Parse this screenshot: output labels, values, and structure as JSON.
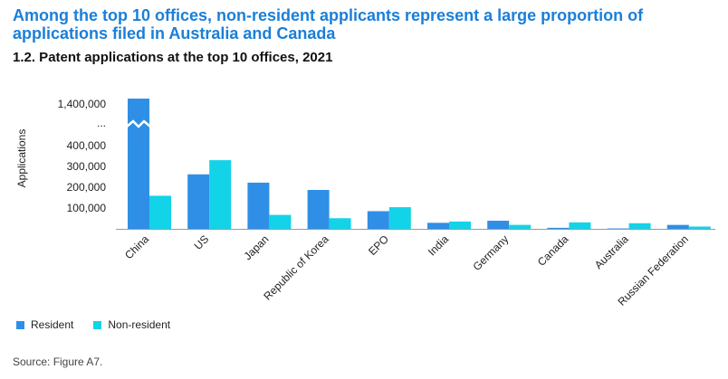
{
  "headline": "Among the top 10 offices, non-resident applicants represent a large proportion of applications filed in Australia and Canada",
  "subtitle": "1.2. Patent applications at the top 10 offices, 2021",
  "source": "Source: Figure A7.",
  "colors": {
    "resident": "#2f8fe6",
    "non_resident": "#12d3e8",
    "axis": "#999999"
  },
  "chart_data": {
    "type": "bar",
    "categories": [
      "China",
      "US",
      "Japan",
      "Republic of Korea",
      "EPO",
      "India",
      "Germany",
      "Canada",
      "Australia",
      "Russian Federation"
    ],
    "series": [
      {
        "name": "Resident",
        "values": [
          1426000,
          262000,
          222000,
          187000,
          85000,
          29000,
          39000,
          5000,
          2000,
          19000
        ]
      },
      {
        "name": "Non-resident",
        "values": [
          159000,
          330000,
          67000,
          51000,
          104000,
          35000,
          19000,
          31000,
          27000,
          11000
        ]
      }
    ],
    "ylabel": "Applications",
    "yticks": [
      "100,000",
      "200,000",
      "300,000",
      "400,000",
      "...",
      "1,400,000"
    ],
    "axis_break": true,
    "grid": false,
    "legend_position": "bottom-left"
  }
}
